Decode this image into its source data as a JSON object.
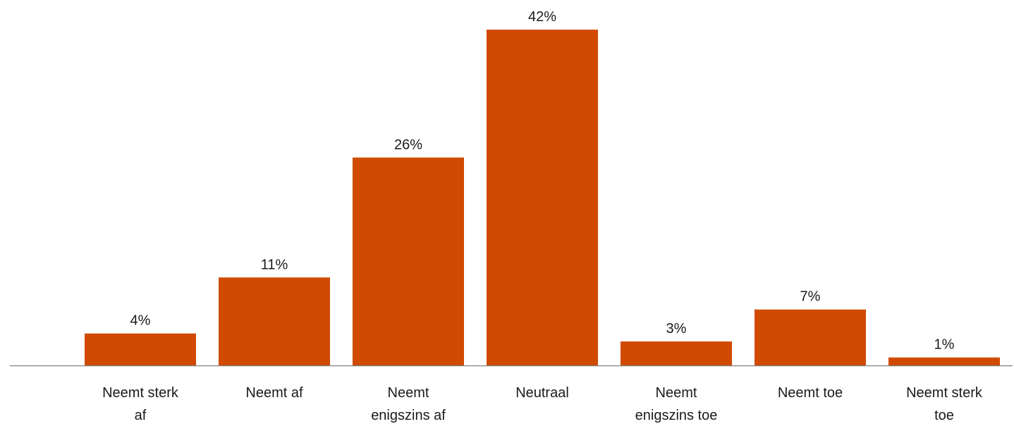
{
  "chart_data": {
    "type": "bar",
    "categories": [
      [
        "Neemt sterk",
        "af"
      ],
      [
        "Neemt af"
      ],
      [
        "Neemt",
        "enigszins af"
      ],
      [
        "Neutraal"
      ],
      [
        "Neemt",
        "enigszins toe"
      ],
      [
        "Neemt toe"
      ],
      [
        "Neemt sterk",
        "toe"
      ]
    ],
    "values": [
      4,
      11,
      26,
      42,
      3,
      7,
      1
    ],
    "value_labels": [
      "4%",
      "11%",
      "26%",
      "42%",
      "3%",
      "7%",
      "1%"
    ],
    "unit": "%",
    "ylim": [
      0,
      42
    ],
    "grid": false,
    "legend": "none",
    "colors": {
      "bar": "#D04A02",
      "axis": "#7f7f7f",
      "text": "#1a1a1a"
    }
  }
}
